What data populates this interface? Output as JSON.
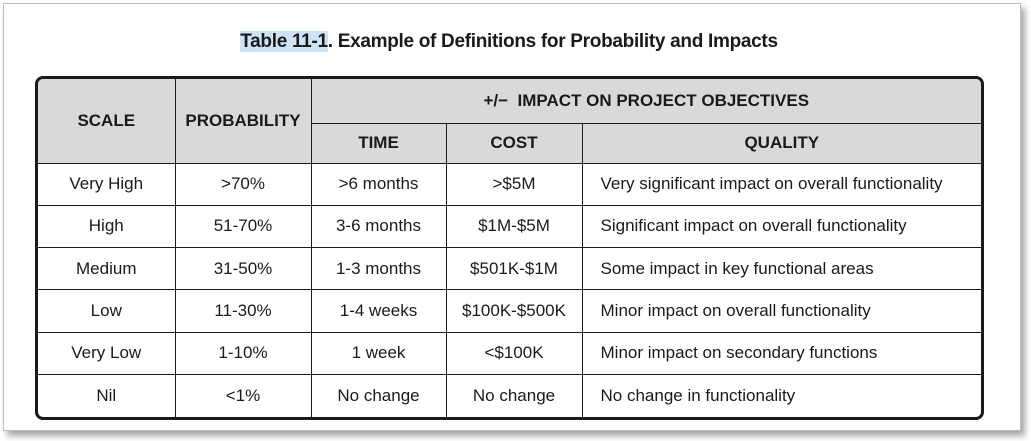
{
  "caption": {
    "highlighted": "Table 11-1",
    "rest": ". Example of Definitions for Probability and Impacts"
  },
  "headers": {
    "scale": "SCALE",
    "probability": "PROBABILITY",
    "impact_group": "+/−  IMPACT ON PROJECT OBJECTIVES",
    "time": "TIME",
    "cost": "COST",
    "quality": "QUALITY"
  },
  "rows": [
    {
      "scale": "Very High",
      "probability": ">70%",
      "time": ">6 months",
      "cost": ">$5M",
      "quality": "Very significant impact on overall functionality"
    },
    {
      "scale": "High",
      "probability": "51-70%",
      "time": "3-6 months",
      "cost": "$1M-$5M",
      "quality": "Significant impact on overall functionality"
    },
    {
      "scale": "Medium",
      "probability": "31-50%",
      "time": "1-3 months",
      "cost": "$501K-$1M",
      "quality": "Some impact in key functional areas"
    },
    {
      "scale": "Low",
      "probability": "11-30%",
      "time": "1-4 weeks",
      "cost": "$100K-$500K",
      "quality": "Minor impact on overall functionality"
    },
    {
      "scale": "Very Low",
      "probability": "1-10%",
      "time": "1 week",
      "cost": "<$100K",
      "quality": "Minor impact on secondary functions"
    },
    {
      "scale": "Nil",
      "probability": "<1%",
      "time": "No change",
      "cost": "No change",
      "quality": "No change in functionality"
    }
  ],
  "colors": {
    "header_bg": "#d9d9d9",
    "caption_highlight": "#cfe3f7",
    "border": "#1a1a1a"
  }
}
